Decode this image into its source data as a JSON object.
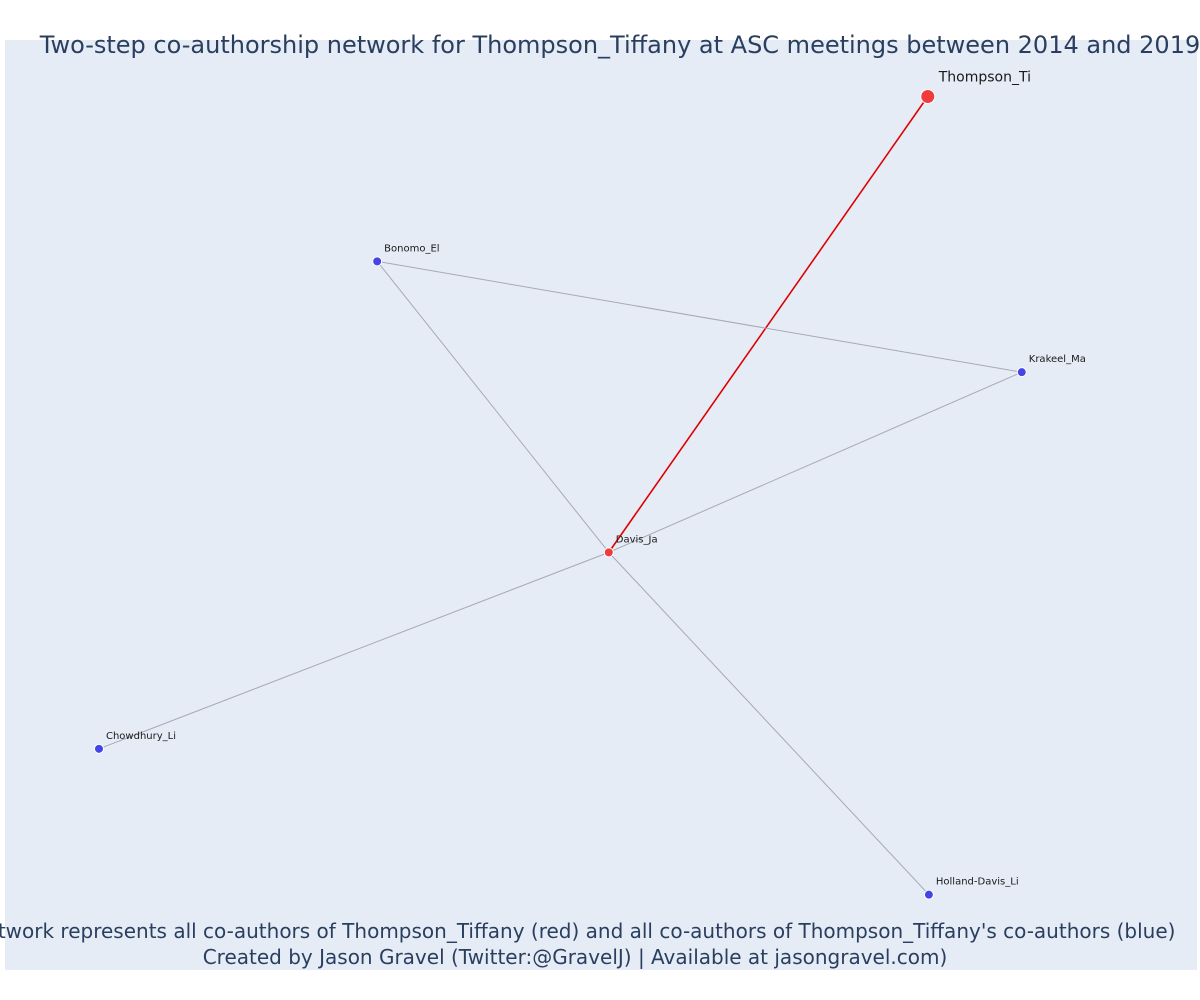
{
  "title": "Two-step co-authorship network for Thompson_Tiffany at ASC meetings between 2014 and 2019",
  "caption": {
    "line1": "Network represents all co-authors of Thompson_Tiffany (red) and all co-authors of Thompson_Tiffany's co-authors (blue)",
    "line2": "Created by Jason Gravel (Twitter:@GravelJ) | Available at jasongravel.com)"
  },
  "colors": {
    "plot_background": "#e5ecf6",
    "focal": "#ef3b3b",
    "first_step": "#ef3b3b",
    "second_step": "#4444e8",
    "focal_edge": "#e00000",
    "other_edge": "#a8a8b8"
  },
  "chart_data": {
    "type": "network",
    "title": "Two-step co-authorship network for Thompson_Tiffany at ASC meetings between 2014 and 2019",
    "nodes": [
      {
        "id": "Thompson_Ti",
        "group": "focal",
        "x": 0.8565,
        "y": 0.9452
      },
      {
        "id": "Davis_Ja",
        "group": "first_step",
        "x": 0.5477,
        "y": 0.4301
      },
      {
        "id": "Bonomo_El",
        "group": "second_step",
        "x": 0.3235,
        "y": 0.7589
      },
      {
        "id": "Krakeel_Ma",
        "group": "second_step",
        "x": 0.9475,
        "y": 0.6337
      },
      {
        "id": "Chowdhury_Li",
        "group": "second_step",
        "x": 0.0542,
        "y": 0.2081
      },
      {
        "id": "Holland-Davis_Li",
        "group": "second_step",
        "x": 0.8576,
        "y": 0.0433
      }
    ],
    "edges": [
      {
        "source": "Thompson_Ti",
        "target": "Davis_Ja",
        "type": "focal"
      },
      {
        "source": "Davis_Ja",
        "target": "Bonomo_El",
        "type": "other"
      },
      {
        "source": "Davis_Ja",
        "target": "Krakeel_Ma",
        "type": "other"
      },
      {
        "source": "Davis_Ja",
        "target": "Chowdhury_Li",
        "type": "other"
      },
      {
        "source": "Davis_Ja",
        "target": "Holland-Davis_Li",
        "type": "other"
      },
      {
        "source": "Bonomo_El",
        "target": "Krakeel_Ma",
        "type": "other"
      }
    ]
  }
}
